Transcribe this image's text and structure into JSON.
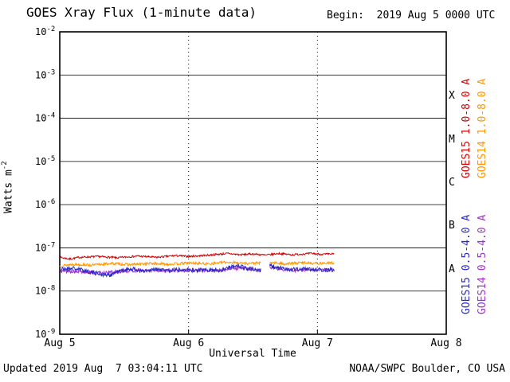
{
  "header": {
    "title": "GOES Xray Flux (1-minute data)",
    "begin_label": "Begin:  2019 Aug 5 0000 UTC"
  },
  "footer": {
    "updated": "Updated 2019 Aug  7 03:04:11 UTC",
    "credit": "NOAA/SWPC Boulder, CO USA"
  },
  "colors": {
    "background": "#ffffff",
    "axis": "#000000",
    "goes15_long": "#d40000",
    "goes14_long": "#ff9500",
    "goes15_short": "#2929c8",
    "goes14_short": "#9932cc"
  },
  "chart_data": {
    "type": "line",
    "title": "GOES Xray Flux (1-minute data)",
    "xlabel": "Universal Time",
    "ylabel": "Watts m^-2",
    "ylabel_base": "Watts m",
    "ylabel_exp": "-2",
    "x_axis": {
      "start": "2019 Aug 5 0000 UTC",
      "range_days": [
        0,
        3
      ],
      "ticks": [
        {
          "day": 0,
          "label": "Aug 5"
        },
        {
          "day": 1,
          "label": "Aug 6"
        },
        {
          "day": 2,
          "label": "Aug 7"
        },
        {
          "day": 3,
          "label": "Aug 8"
        }
      ],
      "dotted_gridline_days": [
        1,
        2
      ]
    },
    "y_axis": {
      "scale": "log10",
      "unit": "Watts m^-2",
      "range_exp": [
        -9,
        -2
      ],
      "ticks": [
        {
          "exp": -2
        },
        {
          "exp": -3
        },
        {
          "exp": -4
        },
        {
          "exp": -5
        },
        {
          "exp": -6
        },
        {
          "exp": -7
        },
        {
          "exp": -8
        },
        {
          "exp": -9
        }
      ]
    },
    "flare_classes": [
      {
        "label": "X",
        "between_exp": [
          -4,
          -3
        ]
      },
      {
        "label": "M",
        "between_exp": [
          -5,
          -4
        ]
      },
      {
        "label": "C",
        "between_exp": [
          -6,
          -5
        ]
      },
      {
        "label": "B",
        "between_exp": [
          -7,
          -6
        ]
      },
      {
        "label": "A",
        "between_exp": [
          -8,
          -7
        ]
      }
    ],
    "legend": [
      {
        "label": "GOES15 1.0-8.0 A",
        "color": "#d40000"
      },
      {
        "label": "GOES14 1.0-8.0 A",
        "color": "#ff9500"
      },
      {
        "label": "GOES15 0.5-4.0 A",
        "color": "#2929c8"
      },
      {
        "label": "GOES14 0.5-4.0 A",
        "color": "#9932cc"
      }
    ],
    "series": [
      {
        "id": "goes14-short",
        "name": "GOES14 0.5-4.0 A",
        "color": "#9932cc",
        "seed": 5,
        "noise_log": 0.04,
        "segments": [
          {
            "points_day_log10flux": [
              [
                0,
                -7.53
              ],
              [
                0.3,
                -7.58
              ],
              [
                0.6,
                -7.52
              ],
              [
                0.9,
                -7.52
              ],
              [
                1.2,
                -7.53
              ],
              [
                1.4,
                -7.46
              ],
              [
                1.56,
                -7.53
              ]
            ]
          },
          {
            "points_day_log10flux": [
              [
                1.63,
                -7.45
              ],
              [
                1.8,
                -7.52
              ],
              [
                2.0,
                -7.51
              ],
              [
                2.13,
                -7.52
              ]
            ]
          }
        ]
      },
      {
        "id": "goes15-short",
        "name": "GOES15 0.5-4.0 A",
        "color": "#2929c8",
        "seed": 21,
        "noise_log": 0.05,
        "segments": [
          {
            "points_day_log10flux": [
              [
                0,
                -7.5
              ],
              [
                0.1,
                -7.47
              ],
              [
                0.2,
                -7.53
              ],
              [
                0.3,
                -7.6
              ],
              [
                0.38,
                -7.64
              ],
              [
                0.45,
                -7.55
              ],
              [
                0.55,
                -7.48
              ],
              [
                0.65,
                -7.55
              ],
              [
                0.75,
                -7.5
              ],
              [
                0.85,
                -7.53
              ],
              [
                0.95,
                -7.49
              ],
              [
                1.05,
                -7.53
              ],
              [
                1.15,
                -7.5
              ],
              [
                1.25,
                -7.52
              ],
              [
                1.32,
                -7.44
              ],
              [
                1.38,
                -7.4
              ],
              [
                1.45,
                -7.48
              ],
              [
                1.56,
                -7.52
              ]
            ]
          },
          {
            "points_day_log10flux": [
              [
                1.63,
                -7.4
              ],
              [
                1.68,
                -7.46
              ],
              [
                1.8,
                -7.5
              ],
              [
                1.95,
                -7.49
              ],
              [
                2.05,
                -7.52
              ],
              [
                2.13,
                -7.5
              ]
            ]
          }
        ]
      },
      {
        "id": "goes14-long",
        "name": "GOES14 1.0-8.0 A",
        "color": "#ff9500",
        "seed": 13,
        "noise_log": 0.03,
        "segments": [
          {
            "points_day_log10flux": [
              [
                0,
                -7.42
              ],
              [
                0.1,
                -7.38
              ],
              [
                0.25,
                -7.4
              ],
              [
                0.4,
                -7.36
              ],
              [
                0.55,
                -7.39
              ],
              [
                0.7,
                -7.36
              ],
              [
                0.85,
                -7.38
              ],
              [
                1.0,
                -7.35
              ],
              [
                1.15,
                -7.37
              ],
              [
                1.3,
                -7.33
              ],
              [
                1.45,
                -7.36
              ],
              [
                1.56,
                -7.35
              ]
            ]
          },
          {
            "points_day_log10flux": [
              [
                1.63,
                -7.34
              ],
              [
                1.75,
                -7.37
              ],
              [
                1.9,
                -7.34
              ],
              [
                2.0,
                -7.36
              ],
              [
                2.13,
                -7.35
              ]
            ]
          }
        ]
      },
      {
        "id": "goes15-long",
        "name": "GOES15 1.0-8.0 A",
        "color": "#d40000",
        "seed": 7,
        "noise_log": 0.022,
        "segments": [
          {
            "points_day_log10flux": [
              [
                0,
                -7.22
              ],
              [
                0.08,
                -7.26
              ],
              [
                0.15,
                -7.22
              ],
              [
                0.3,
                -7.2
              ],
              [
                0.45,
                -7.23
              ],
              [
                0.6,
                -7.19
              ],
              [
                0.75,
                -7.22
              ],
              [
                0.9,
                -7.18
              ],
              [
                1.0,
                -7.2
              ],
              [
                1.15,
                -7.17
              ],
              [
                1.3,
                -7.13
              ],
              [
                1.4,
                -7.16
              ],
              [
                1.5,
                -7.14
              ],
              [
                1.6,
                -7.17
              ],
              [
                1.7,
                -7.13
              ],
              [
                1.8,
                -7.16
              ],
              [
                1.95,
                -7.13
              ],
              [
                2.05,
                -7.15
              ],
              [
                2.13,
                -7.14
              ]
            ]
          }
        ]
      }
    ]
  }
}
